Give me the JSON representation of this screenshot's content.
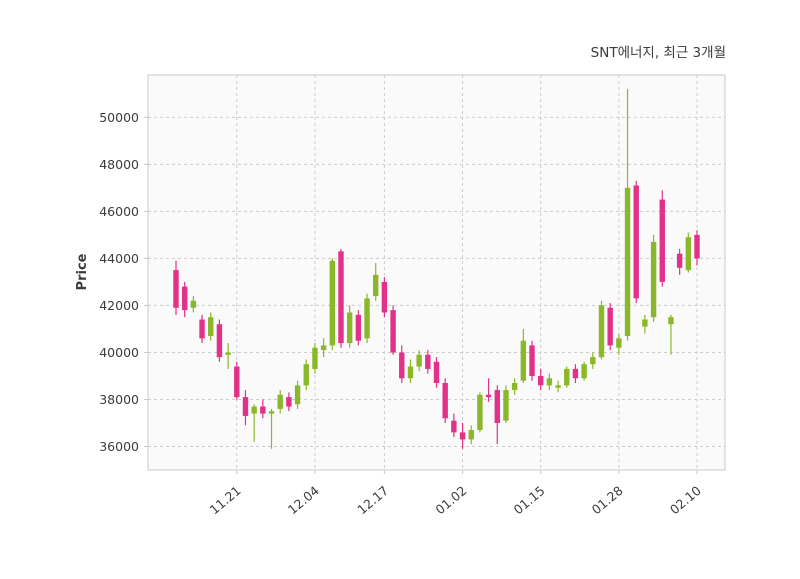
{
  "title": "SNT에너지, 최근 3개월",
  "chart_data": {
    "type": "candlestick",
    "title": "SNT에너지, 최근 3개월",
    "xlabel": "",
    "ylabel": "Price",
    "ylim": [
      35000,
      51800
    ],
    "yticks": [
      36000,
      38000,
      40000,
      42000,
      44000,
      46000,
      48000,
      50000
    ],
    "xticks": [
      {
        "label": "11.21",
        "index": 7
      },
      {
        "label": "12.04",
        "index": 16
      },
      {
        "label": "12.17",
        "index": 24
      },
      {
        "label": "01.02",
        "index": 33
      },
      {
        "label": "01.15",
        "index": 42
      },
      {
        "label": "01.28",
        "index": 51
      },
      {
        "label": "02.10",
        "index": 60
      }
    ],
    "grid": true,
    "legend_position": "none",
    "colors": {
      "up": "#8ab82a",
      "down": "#e23189",
      "grid": "#cccccc",
      "frame": "#c9c9c9",
      "plot_bg": "#fafafa",
      "text": "#3c3c3c"
    },
    "candle_format": [
      "open",
      "high",
      "low",
      "close"
    ],
    "candles": [
      [
        43500,
        43900,
        41600,
        41900
      ],
      [
        42800,
        43000,
        41500,
        41800
      ],
      [
        41900,
        42400,
        41700,
        42200
      ],
      [
        41400,
        41600,
        40400,
        40600
      ],
      [
        40700,
        41700,
        40500,
        41500
      ],
      [
        41200,
        41400,
        39600,
        39800
      ],
      [
        39900,
        40400,
        39300,
        40000
      ],
      [
        39400,
        39600,
        38000,
        38100
      ],
      [
        38100,
        38400,
        36900,
        37300
      ],
      [
        37400,
        37800,
        36200,
        37700
      ],
      [
        37700,
        38000,
        37200,
        37400
      ],
      [
        37400,
        37600,
        35900,
        37500
      ],
      [
        37600,
        38400,
        37400,
        38200
      ],
      [
        38100,
        38300,
        37500,
        37700
      ],
      [
        37800,
        38800,
        37600,
        38600
      ],
      [
        38600,
        39700,
        38400,
        39500
      ],
      [
        39300,
        40400,
        39100,
        40200
      ],
      [
        40100,
        40600,
        39800,
        40300
      ],
      [
        40300,
        44000,
        40100,
        43900
      ],
      [
        44300,
        44400,
        40200,
        40400
      ],
      [
        40400,
        42000,
        40200,
        41700
      ],
      [
        41600,
        41800,
        40300,
        40500
      ],
      [
        40600,
        42500,
        40400,
        42300
      ],
      [
        42400,
        43800,
        42200,
        43300
      ],
      [
        43000,
        43200,
        41500,
        41700
      ],
      [
        41800,
        42000,
        39900,
        40000
      ],
      [
        40000,
        40300,
        38700,
        38900
      ],
      [
        38900,
        39700,
        38700,
        39400
      ],
      [
        39400,
        40100,
        39200,
        39900
      ],
      [
        39900,
        40100,
        39100,
        39300
      ],
      [
        39600,
        39800,
        38500,
        38700
      ],
      [
        38700,
        38900,
        37000,
        37200
      ],
      [
        37100,
        37400,
        36400,
        36600
      ],
      [
        36600,
        37000,
        35900,
        36300
      ],
      [
        36300,
        36900,
        36100,
        36700
      ],
      [
        36700,
        38300,
        36600,
        38200
      ],
      [
        38200,
        38900,
        37900,
        38100
      ],
      [
        38400,
        38600,
        36100,
        37000
      ],
      [
        37100,
        38600,
        37000,
        38400
      ],
      [
        38400,
        38900,
        38200,
        38700
      ],
      [
        38800,
        41000,
        38700,
        40500
      ],
      [
        40300,
        40500,
        38800,
        39000
      ],
      [
        39000,
        39300,
        38400,
        38600
      ],
      [
        38600,
        39100,
        38400,
        38900
      ],
      [
        38500,
        38800,
        38300,
        38600
      ],
      [
        38600,
        39400,
        38500,
        39300
      ],
      [
        39300,
        39500,
        38700,
        38900
      ],
      [
        38900,
        39600,
        38800,
        39500
      ],
      [
        39500,
        40000,
        39300,
        39800
      ],
      [
        39800,
        42200,
        39700,
        42000
      ],
      [
        41900,
        42100,
        40100,
        40300
      ],
      [
        40200,
        40800,
        39900,
        40600
      ],
      [
        40700,
        51200,
        40500,
        47000
      ],
      [
        47100,
        47300,
        42100,
        42300
      ],
      [
        41100,
        41600,
        40800,
        41400
      ],
      [
        41500,
        45000,
        41300,
        44700
      ],
      [
        46500,
        46900,
        42800,
        43000
      ],
      [
        41200,
        41600,
        39900,
        41500
      ],
      [
        44200,
        44400,
        43300,
        43600
      ],
      [
        43500,
        45100,
        43400,
        44900
      ],
      [
        45000,
        45200,
        43700,
        44000
      ]
    ]
  }
}
